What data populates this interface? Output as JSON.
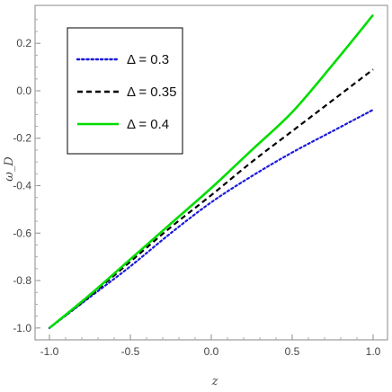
{
  "chart_data": {
    "type": "line",
    "title": "",
    "xlabel": "z",
    "ylabel": "ω_D",
    "xlim": [
      -1.0,
      1.0
    ],
    "ylim": [
      -1.05,
      0.36
    ],
    "x_ticks": [
      -1.0,
      -0.5,
      0.0,
      0.5,
      1.0
    ],
    "x_tick_labels": [
      "-1.0",
      "-0.5",
      "0.0",
      "0.5",
      "1.0"
    ],
    "y_ticks": [
      -1.0,
      -0.8,
      -0.6,
      -0.4,
      -0.2,
      0.0,
      0.2
    ],
    "y_tick_labels": [
      "-1.0",
      "-0.8",
      "-0.6",
      "-0.4",
      "-0.2",
      "0.0",
      "0.2"
    ],
    "grid": false,
    "legend_position": "top-left",
    "x": [
      -1.0,
      -0.75,
      -0.5,
      -0.25,
      0.0,
      0.25,
      0.5,
      0.75,
      1.0
    ],
    "series": [
      {
        "name": "Δ = 0.3",
        "color": "#1a1adb",
        "dash": "dotted",
        "values": [
          -1.0,
          -0.87,
          -0.74,
          -0.6,
          -0.47,
          -0.36,
          -0.26,
          -0.17,
          -0.08
        ]
      },
      {
        "name": "Δ = 0.35",
        "color": "#000000",
        "dash": "dashed",
        "values": [
          -1.0,
          -0.865,
          -0.72,
          -0.575,
          -0.44,
          -0.3,
          -0.17,
          -0.04,
          0.09
        ]
      },
      {
        "name": "Δ = 0.4",
        "color": "#00dd00",
        "dash": "solid",
        "values": [
          -1.0,
          -0.86,
          -0.71,
          -0.56,
          -0.41,
          -0.25,
          -0.09,
          0.11,
          0.32
        ]
      }
    ]
  }
}
